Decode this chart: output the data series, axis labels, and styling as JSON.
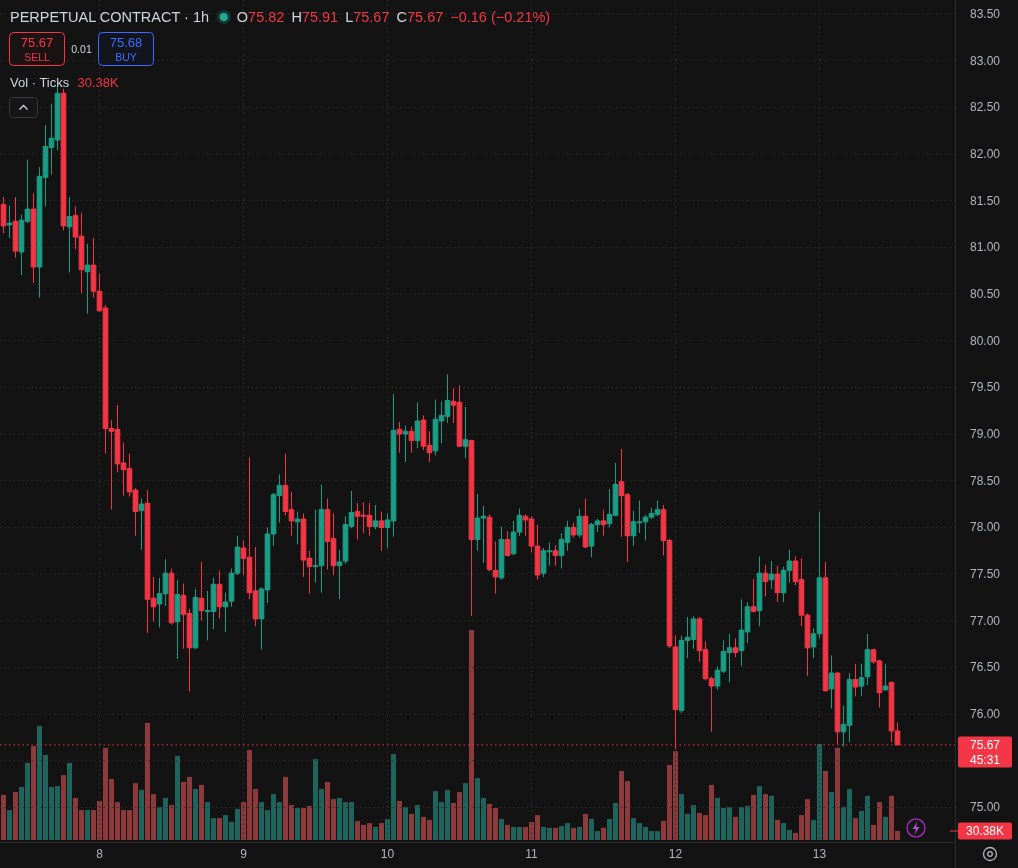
{
  "chart_data": [
    {
      "type": "candlestick",
      "title": "PERPETUAL CONTRACT · 1h",
      "annotations": [
        "O75.82",
        "H75.91",
        "L75.67",
        "C75.67",
        "−0.16 (−0.21%)",
        "75.67",
        "SELL",
        "0.01",
        "75.68",
        "BUY",
        "45:31"
      ],
      "x": [
        7.3333,
        7.375,
        7.4167,
        7.4583,
        7.5,
        7.5417,
        7.5833,
        7.625,
        7.6667,
        7.7083,
        7.75,
        7.7917,
        7.8333,
        7.875,
        7.9167,
        7.9583,
        8,
        8.0417,
        8.0833,
        8.125,
        8.1667,
        8.2083,
        8.25,
        8.2917,
        8.3333,
        8.375,
        8.4167,
        8.4583,
        8.5,
        8.5417,
        8.5833,
        8.625,
        8.6667,
        8.7083,
        8.75,
        8.7917,
        8.8333,
        8.875,
        8.9167,
        8.9583,
        9,
        9.0417,
        9.0833,
        9.125,
        9.1667,
        9.2083,
        9.25,
        9.2917,
        9.3333,
        9.375,
        9.4167,
        9.4583,
        9.5,
        9.5417,
        9.5833,
        9.625,
        9.6667,
        9.7083,
        9.75,
        9.7917,
        9.8333,
        9.875,
        9.9167,
        9.9583,
        10,
        10.0417,
        10.0833,
        10.125,
        10.1667,
        10.2083,
        10.25,
        10.2917,
        10.3333,
        10.375,
        10.4167,
        10.4583,
        10.5,
        10.5417,
        10.5833,
        10.625,
        10.6667,
        10.7083,
        10.75,
        10.7917,
        10.8333,
        10.875,
        10.9167,
        10.9583,
        11,
        11.0417,
        11.0833,
        11.125,
        11.1667,
        11.2083,
        11.25,
        11.2917,
        11.3333,
        11.375,
        11.4167,
        11.4583,
        11.5,
        11.5417,
        11.5833,
        11.625,
        11.6667,
        11.7083,
        11.75,
        11.7917,
        11.8333,
        11.875,
        11.9167,
        11.9583,
        12,
        12.0417,
        12.0833,
        12.125,
        12.1667,
        12.2083,
        12.25,
        12.2917,
        12.3333,
        12.375,
        12.4167,
        12.4583,
        12.5,
        12.5417,
        12.5833,
        12.625,
        12.6667,
        12.7083,
        12.75,
        12.7917,
        12.8333,
        12.875,
        12.9167,
        12.9583,
        13,
        13.0417,
        13.0833,
        13.125,
        13.1667,
        13.2083,
        13.25,
        13.2917,
        13.3333,
        13.375,
        13.4167,
        13.4583,
        13.5,
        13.5417
      ],
      "ohlc": [
        [
          81.46,
          81.54,
          81.15,
          81.23
        ],
        [
          81.24,
          81.45,
          81.1,
          81.26
        ],
        [
          81.28,
          81.54,
          80.89,
          80.96
        ],
        [
          80.95,
          81.35,
          80.7,
          81.29
        ],
        [
          81.28,
          81.94,
          81.26,
          81.41
        ],
        [
          81.41,
          81.58,
          80.62,
          80.79
        ],
        [
          80.79,
          81.86,
          80.46,
          81.76
        ],
        [
          81.75,
          82.31,
          81.44,
          82.08
        ],
        [
          82.07,
          82.54,
          81.78,
          82.17
        ],
        [
          82.15,
          82.72,
          82.04,
          82.65
        ],
        [
          82.65,
          82.7,
          81.18,
          81.23
        ],
        [
          81.22,
          81.54,
          80.73,
          81.33
        ],
        [
          81.34,
          81.44,
          80.98,
          81.11
        ],
        [
          81.12,
          81.37,
          80.51,
          80.76
        ],
        [
          80.74,
          81.04,
          80.29,
          80.81
        ],
        [
          80.81,
          81.1,
          80.46,
          80.53
        ],
        [
          80.53,
          80.72,
          80.31,
          80.32
        ],
        [
          80.35,
          80.38,
          78.79,
          79.06
        ],
        [
          79.06,
          79.15,
          78.19,
          79.03
        ],
        [
          79.05,
          79.31,
          78.59,
          78.68
        ],
        [
          78.69,
          78.91,
          78.34,
          78.62
        ],
        [
          78.63,
          78.79,
          78.33,
          78.38
        ],
        [
          78.4,
          78.42,
          77.91,
          78.17
        ],
        [
          78.18,
          78.31,
          77.76,
          78.25
        ],
        [
          78.26,
          78.4,
          76.87,
          77.23
        ],
        [
          77.24,
          77.47,
          76.99,
          77.15
        ],
        [
          77.18,
          77.46,
          76.93,
          77.29
        ],
        [
          77.29,
          77.66,
          77.16,
          77.51
        ],
        [
          77.51,
          77.56,
          76.96,
          76.98
        ],
        [
          76.99,
          77.44,
          76.59,
          77.28
        ],
        [
          77.27,
          77.4,
          76.7,
          77.07
        ],
        [
          77.08,
          77.13,
          76.24,
          76.71
        ],
        [
          76.71,
          77.34,
          76.7,
          77.25
        ],
        [
          77.24,
          77.63,
          77,
          77.11
        ],
        [
          77.1,
          77.32,
          76.79,
          77.11
        ],
        [
          77.1,
          77.46,
          76.91,
          77.39
        ],
        [
          77.39,
          77.54,
          77.02,
          77.15
        ],
        [
          77.15,
          77.3,
          76.88,
          77.2
        ],
        [
          77.21,
          77.56,
          77.15,
          77.51
        ],
        [
          77.51,
          77.91,
          77.49,
          77.79
        ],
        [
          77.78,
          77.86,
          77.49,
          77.67
        ],
        [
          77.68,
          78.75,
          77.23,
          77.3
        ],
        [
          77.32,
          77.79,
          76.94,
          77.02
        ],
        [
          77.02,
          77.36,
          76.69,
          77.34
        ],
        [
          77.33,
          78,
          77.19,
          77.93
        ],
        [
          77.93,
          78.37,
          77.8,
          78.35
        ],
        [
          78.34,
          78.57,
          78.05,
          78.45
        ],
        [
          78.45,
          78.79,
          78.13,
          78.17
        ],
        [
          78.19,
          78.38,
          77.91,
          78.07
        ],
        [
          78.06,
          78.17,
          77.82,
          78.09
        ],
        [
          78.09,
          78.15,
          77.47,
          77.65
        ],
        [
          77.67,
          77.75,
          77.29,
          77.58
        ],
        [
          77.58,
          78.19,
          77.41,
          77.59
        ],
        [
          77.59,
          78.46,
          77.3,
          78.19
        ],
        [
          78.19,
          78.31,
          77.55,
          77.85
        ],
        [
          77.88,
          78.15,
          77.49,
          77.59
        ],
        [
          77.59,
          77.76,
          77.23,
          77.63
        ],
        [
          77.64,
          78.12,
          77.61,
          78.03
        ],
        [
          78.01,
          78.39,
          77.99,
          78.16
        ],
        [
          78.17,
          78.26,
          77.87,
          78.12
        ],
        [
          78.13,
          78.27,
          77.94,
          78.12
        ],
        [
          78.13,
          78.26,
          77.91,
          78.01
        ],
        [
          78.01,
          78.24,
          77.98,
          78.07
        ],
        [
          78.07,
          78.17,
          77.75,
          78
        ],
        [
          78,
          78.15,
          77.78,
          78.08
        ],
        [
          78.07,
          79.43,
          77.9,
          79.04
        ],
        [
          79.05,
          79.13,
          78.8,
          79
        ],
        [
          79,
          79.09,
          78.7,
          79.03
        ],
        [
          79.03,
          79.08,
          78.8,
          78.93
        ],
        [
          78.93,
          79.34,
          78.85,
          79.14
        ],
        [
          79.15,
          79.2,
          78.83,
          78.87
        ],
        [
          78.88,
          79.03,
          78.7,
          78.8
        ],
        [
          78.82,
          79.37,
          78.77,
          79.16
        ],
        [
          79.14,
          79.35,
          78.9,
          79.2
        ],
        [
          79.19,
          79.64,
          79.12,
          79.36
        ],
        [
          79.35,
          79.49,
          79.12,
          79.31
        ],
        [
          79.34,
          79.52,
          78.86,
          78.87
        ],
        [
          78.87,
          79.29,
          78.74,
          78.94
        ],
        [
          78.93,
          78.94,
          77.05,
          77.87
        ],
        [
          77.87,
          78.36,
          77.75,
          78.1
        ],
        [
          78.1,
          78.23,
          77.62,
          78.12
        ],
        [
          78.11,
          78.14,
          77.53,
          77.55
        ],
        [
          77.54,
          77.85,
          77.29,
          77.47
        ],
        [
          77.46,
          78.01,
          77.44,
          77.87
        ],
        [
          77.87,
          77.96,
          77.69,
          77.7
        ],
        [
          77.72,
          78.07,
          77.7,
          77.95
        ],
        [
          77.95,
          78.2,
          77.91,
          78.13
        ],
        [
          78.12,
          78.14,
          77.91,
          78.08
        ],
        [
          78.09,
          78.12,
          77.73,
          77.8
        ],
        [
          77.8,
          78.03,
          77.44,
          77.49
        ],
        [
          77.51,
          77.78,
          77.47,
          77.75
        ],
        [
          77.74,
          77.84,
          77.59,
          77.75
        ],
        [
          77.75,
          77.81,
          77.59,
          77.7
        ],
        [
          77.7,
          77.94,
          77.56,
          77.87
        ],
        [
          77.84,
          78.07,
          77.75,
          78
        ],
        [
          78,
          78.05,
          77.89,
          77.92
        ],
        [
          77.92,
          78.2,
          77.89,
          78.12
        ],
        [
          78.12,
          78.31,
          77.78,
          77.79
        ],
        [
          77.8,
          78.05,
          77.68,
          78.03
        ],
        [
          78.03,
          78.09,
          77.95,
          78.07
        ],
        [
          78.07,
          78.19,
          77.91,
          78.03
        ],
        [
          78.04,
          78.41,
          78,
          78.14
        ],
        [
          78.13,
          78.69,
          78.12,
          78.46
        ],
        [
          78.49,
          78.84,
          77.9,
          78.34
        ],
        [
          78.35,
          78.37,
          77.63,
          77.91
        ],
        [
          77.91,
          78.18,
          77.8,
          78.06
        ],
        [
          78.05,
          78.29,
          77.94,
          78.06
        ],
        [
          78.06,
          78.13,
          77.86,
          78.11
        ],
        [
          78.11,
          78.21,
          78.09,
          78.15
        ],
        [
          78.14,
          78.29,
          78.12,
          78.19
        ],
        [
          78.19,
          78.24,
          77.7,
          77.86
        ],
        [
          77.86,
          77.88,
          76.71,
          76.73
        ],
        [
          76.72,
          76.84,
          75.62,
          76.05
        ],
        [
          76.04,
          76.84,
          76.01,
          76.79
        ],
        [
          76.79,
          77.04,
          76.6,
          76.82
        ],
        [
          76.8,
          77.05,
          76.7,
          77.02
        ],
        [
          77.02,
          77.04,
          76.56,
          76.68
        ],
        [
          76.69,
          76.78,
          76.36,
          76.38
        ],
        [
          76.38,
          76.4,
          75.81,
          76.3
        ],
        [
          76.3,
          76.51,
          76.26,
          76.47
        ],
        [
          76.46,
          76.79,
          76.44,
          76.67
        ],
        [
          76.66,
          76.86,
          76.34,
          76.71
        ],
        [
          76.71,
          76.81,
          76.61,
          76.66
        ],
        [
          76.68,
          77.23,
          76.51,
          76.9
        ],
        [
          76.88,
          77.2,
          76.76,
          77.15
        ],
        [
          77.15,
          77.45,
          77.09,
          77.1
        ],
        [
          77.11,
          77.69,
          76.94,
          77.51
        ],
        [
          77.51,
          77.6,
          77.26,
          77.42
        ],
        [
          77.44,
          77.64,
          77.34,
          77.5
        ],
        [
          77.5,
          77.59,
          77.2,
          77.3
        ],
        [
          77.3,
          77.58,
          77.2,
          77.54
        ],
        [
          77.54,
          77.76,
          77.41,
          77.64
        ],
        [
          77.64,
          77.69,
          77.38,
          77.42
        ],
        [
          77.44,
          77.67,
          76.94,
          77.06
        ],
        [
          77.06,
          77.08,
          76.41,
          76.71
        ],
        [
          76.72,
          76.92,
          76.6,
          76.86
        ],
        [
          76.86,
          78.17,
          76.81,
          77.46
        ],
        [
          77.46,
          77.63,
          76.24,
          76.25
        ],
        [
          76.27,
          76.63,
          76.06,
          76.44
        ],
        [
          76.44,
          76.45,
          75.68,
          75.81
        ],
        [
          75.81,
          76.09,
          75.65,
          75.89
        ],
        [
          75.88,
          76.44,
          75.7,
          76.37
        ],
        [
          76.37,
          76.54,
          76.19,
          76.29
        ],
        [
          76.3,
          76.54,
          76.19,
          76.39
        ],
        [
          76.4,
          76.86,
          76.31,
          76.69
        ],
        [
          76.69,
          76.7,
          76.54,
          76.56
        ],
        [
          76.57,
          76.58,
          76.07,
          76.23
        ],
        [
          76.26,
          76.54,
          76.25,
          76.3
        ],
        [
          76.34,
          76.35,
          75.7,
          75.82
        ],
        [
          75.82,
          75.91,
          75.67,
          75.67
        ]
      ],
      "colors": [
        "#f23645",
        "#1a9d84",
        "#f23645",
        "#1a9d84",
        "#1a9d84",
        "#f23645",
        "#1a9d84",
        "#1a9d84",
        "#1a9d84",
        "#1a9d84",
        "#f23645",
        "#1a9d84",
        "#f23645",
        "#f23645",
        "#1a9d84",
        "#f23645",
        "#f23645",
        "#f23645",
        "#f23645",
        "#f23645",
        "#f23645",
        "#f23645",
        "#f23645",
        "#1a9d84",
        "#f23645",
        "#f23645",
        "#1a9d84",
        "#1a9d84",
        "#f23645",
        "#1a9d84",
        "#f23645",
        "#f23645",
        "#1a9d84",
        "#f23645",
        "#1a9d84",
        "#1a9d84",
        "#f23645",
        "#1a9d84",
        "#1a9d84",
        "#1a9d84",
        "#f23645",
        "#f23645",
        "#f23645",
        "#1a9d84",
        "#1a9d84",
        "#1a9d84",
        "#1a9d84",
        "#f23645",
        "#f23645",
        "#1a9d84",
        "#f23645",
        "#f23645",
        "#1a9d84",
        "#1a9d84",
        "#f23645",
        "#f23645",
        "#1a9d84",
        "#1a9d84",
        "#1a9d84",
        "#f23645",
        "#f23645",
        "#f23645",
        "#1a9d84",
        "#f23645",
        "#1a9d84",
        "#1a9d84",
        "#f23645",
        "#1a9d84",
        "#f23645",
        "#1a9d84",
        "#f23645",
        "#f23645",
        "#1a9d84",
        "#1a9d84",
        "#1a9d84",
        "#f23645",
        "#f23645",
        "#1a9d84",
        "#f23645",
        "#1a9d84",
        "#1a9d84",
        "#f23645",
        "#f23645",
        "#1a9d84",
        "#f23645",
        "#1a9d84",
        "#1a9d84",
        "#f23645",
        "#f23645",
        "#f23645",
        "#1a9d84",
        "#1a9d84",
        "#f23645",
        "#1a9d84",
        "#1a9d84",
        "#f23645",
        "#1a9d84",
        "#f23645",
        "#1a9d84",
        "#1a9d84",
        "#f23645",
        "#1a9d84",
        "#1a9d84",
        "#f23645",
        "#f23645",
        "#1a9d84",
        "#1a9d84",
        "#1a9d84",
        "#1a9d84",
        "#1a9d84",
        "#f23645",
        "#f23645",
        "#f23645",
        "#1a9d84",
        "#1a9d84",
        "#1a9d84",
        "#f23645",
        "#f23645",
        "#f23645",
        "#1a9d84",
        "#1a9d84",
        "#1a9d84",
        "#f23645",
        "#1a9d84",
        "#1a9d84",
        "#f23645",
        "#1a9d84",
        "#f23645",
        "#1a9d84",
        "#f23645",
        "#1a9d84",
        "#1a9d84",
        "#f23645",
        "#f23645",
        "#f23645",
        "#1a9d84",
        "#1a9d84",
        "#f23645",
        "#1a9d84",
        "#f23645",
        "#1a9d84",
        "#1a9d84",
        "#f23645",
        "#1a9d84",
        "#1a9d84",
        "#f23645",
        "#f23645",
        "#1a9d84",
        "#f23645",
        "#f23645"
      ],
      "xlim": [
        7.309,
        13.941
      ],
      "xticks": [
        8,
        9,
        10,
        11,
        12,
        13
      ],
      "ylim": [
        74.63,
        83.65
      ],
      "yticks": [
        {
          "value": 75,
          "label": "75.00"
        },
        {
          "value": 75.5,
          "label": null
        },
        {
          "value": 76,
          "label": "76.00"
        },
        {
          "value": 76.5,
          "label": "76.50"
        },
        {
          "value": 77,
          "label": "77.00"
        },
        {
          "value": 77.5,
          "label": "77.50"
        },
        {
          "value": 78,
          "label": "78.00"
        },
        {
          "value": 78.5,
          "label": "78.50"
        },
        {
          "value": 79,
          "label": "79.00"
        },
        {
          "value": 79.5,
          "label": "79.50"
        },
        {
          "value": 80,
          "label": "80.00"
        },
        {
          "value": 80.5,
          "label": "80.50"
        },
        {
          "value": 81,
          "label": "81.00"
        },
        {
          "value": 81.5,
          "label": "81.50"
        },
        {
          "value": 82,
          "label": "82.00"
        },
        {
          "value": 82.5,
          "label": "82.50"
        },
        {
          "value": 83,
          "label": "83.00"
        },
        {
          "value": 83.5,
          "label": "83.50"
        }
      ],
      "grid": true,
      "ref_lines": [
        {
          "axis": "y",
          "value": 75.67,
          "label": "75.67",
          "color": "#f23645",
          "line_style": "dotted"
        }
      ]
    },
    {
      "type": "bar",
      "title": "Vol · Ticks",
      "subtitle": "30.38K",
      "tick_labels": "y",
      "x": [
        7.3333,
        7.375,
        7.4167,
        7.4583,
        7.5,
        7.5417,
        7.5833,
        7.625,
        7.6667,
        7.7083,
        7.75,
        7.7917,
        7.8333,
        7.875,
        7.9167,
        7.9583,
        8,
        8.0417,
        8.0833,
        8.125,
        8.1667,
        8.2083,
        8.25,
        8.2917,
        8.3333,
        8.375,
        8.4167,
        8.4583,
        8.5,
        8.5417,
        8.5833,
        8.625,
        8.6667,
        8.7083,
        8.75,
        8.7917,
        8.8333,
        8.875,
        8.9167,
        8.9583,
        9,
        9.0417,
        9.0833,
        9.125,
        9.1667,
        9.2083,
        9.25,
        9.2917,
        9.3333,
        9.375,
        9.4167,
        9.4583,
        9.5,
        9.5417,
        9.5833,
        9.625,
        9.6667,
        9.7083,
        9.75,
        9.7917,
        9.8333,
        9.875,
        9.9167,
        9.9583,
        10,
        10.0417,
        10.0833,
        10.125,
        10.1667,
        10.2083,
        10.25,
        10.2917,
        10.3333,
        10.375,
        10.4167,
        10.4583,
        10.5,
        10.5417,
        10.5833,
        10.625,
        10.6667,
        10.7083,
        10.75,
        10.7917,
        10.8333,
        10.875,
        10.9167,
        10.9583,
        11,
        11.0417,
        11.0833,
        11.125,
        11.1667,
        11.2083,
        11.25,
        11.2917,
        11.3333,
        11.375,
        11.4167,
        11.4583,
        11.5,
        11.5417,
        11.5833,
        11.625,
        11.6667,
        11.7083,
        11.75,
        11.7917,
        11.8333,
        11.875,
        11.9167,
        11.9583,
        12,
        12.0417,
        12.0833,
        12.125,
        12.1667,
        12.2083,
        12.25,
        12.2917,
        12.3333,
        12.375,
        12.4167,
        12.4583,
        12.5,
        12.5417,
        12.5833,
        12.625,
        12.6667,
        12.7083,
        12.75,
        12.7917,
        12.8333,
        12.875,
        12.9167,
        12.9583,
        13,
        13.0417,
        13.0833,
        13.125,
        13.1667,
        13.2083,
        13.25,
        13.2917,
        13.3333,
        13.375,
        13.4167,
        13.4583,
        13.5,
        13.5417
      ],
      "xlim": [
        7.309,
        13.941
      ],
      "ylim": [
        0,
        709
      ],
      "yticks": [
        {
          "value": 30.38,
          "label": "30.38K"
        }
      ],
      "values": [
        152,
        101,
        162,
        179,
        260,
        317,
        385,
        287,
        179,
        182,
        219,
        260,
        142,
        101,
        101,
        101,
        132,
        311,
        206,
        128,
        101,
        101,
        192,
        169,
        395,
        155,
        111,
        142,
        118,
        284,
        196,
        213,
        172,
        186,
        128,
        74,
        74,
        84,
        61,
        105,
        128,
        304,
        172,
        128,
        101,
        155,
        128,
        213,
        118,
        108,
        108,
        115,
        273,
        172,
        196,
        138,
        142,
        128,
        128,
        64,
        51,
        57,
        44,
        57,
        71,
        290,
        132,
        111,
        88,
        118,
        78,
        68,
        165,
        128,
        169,
        125,
        162,
        192,
        709,
        209,
        142,
        122,
        108,
        71,
        51,
        44,
        44,
        44,
        61,
        84,
        44,
        41,
        41,
        47,
        57,
        41,
        44,
        88,
        71,
        30,
        41,
        71,
        125,
        233,
        199,
        74,
        57,
        44,
        30,
        30,
        64,
        253,
        300,
        155,
        88,
        118,
        91,
        84,
        186,
        142,
        108,
        111,
        78,
        111,
        115,
        152,
        182,
        155,
        149,
        68,
        57,
        34,
        24,
        84,
        138,
        68,
        324,
        233,
        162,
        311,
        111,
        172,
        74,
        98,
        149,
        51,
        128,
        78,
        149,
        30.38
      ],
      "colors": [
        "#8c3a3c",
        "#1f645c",
        "#8c3a3c",
        "#1f645c",
        "#1f645c",
        "#8c3a3c",
        "#1f645c",
        "#1f645c",
        "#1f645c",
        "#1f645c",
        "#8c3a3c",
        "#1f645c",
        "#8c3a3c",
        "#8c3a3c",
        "#1f645c",
        "#8c3a3c",
        "#8c3a3c",
        "#8c3a3c",
        "#8c3a3c",
        "#8c3a3c",
        "#8c3a3c",
        "#8c3a3c",
        "#8c3a3c",
        "#1f645c",
        "#8c3a3c",
        "#8c3a3c",
        "#1f645c",
        "#1f645c",
        "#8c3a3c",
        "#1f645c",
        "#8c3a3c",
        "#8c3a3c",
        "#1f645c",
        "#8c3a3c",
        "#1f645c",
        "#1f645c",
        "#8c3a3c",
        "#1f645c",
        "#1f645c",
        "#1f645c",
        "#8c3a3c",
        "#8c3a3c",
        "#8c3a3c",
        "#1f645c",
        "#1f645c",
        "#1f645c",
        "#1f645c",
        "#8c3a3c",
        "#8c3a3c",
        "#1f645c",
        "#8c3a3c",
        "#8c3a3c",
        "#1f645c",
        "#1f645c",
        "#8c3a3c",
        "#8c3a3c",
        "#1f645c",
        "#1f645c",
        "#1f645c",
        "#8c3a3c",
        "#8c3a3c",
        "#8c3a3c",
        "#1f645c",
        "#8c3a3c",
        "#1f645c",
        "#1f645c",
        "#8c3a3c",
        "#1f645c",
        "#8c3a3c",
        "#1f645c",
        "#8c3a3c",
        "#8c3a3c",
        "#1f645c",
        "#1f645c",
        "#1f645c",
        "#8c3a3c",
        "#8c3a3c",
        "#1f645c",
        "#8c3a3c",
        "#1f645c",
        "#1f645c",
        "#8c3a3c",
        "#8c3a3c",
        "#1f645c",
        "#8c3a3c",
        "#1f645c",
        "#1f645c",
        "#8c3a3c",
        "#8c3a3c",
        "#8c3a3c",
        "#1f645c",
        "#1f645c",
        "#8c3a3c",
        "#1f645c",
        "#1f645c",
        "#8c3a3c",
        "#1f645c",
        "#8c3a3c",
        "#1f645c",
        "#1f645c",
        "#8c3a3c",
        "#1f645c",
        "#1f645c",
        "#8c3a3c",
        "#8c3a3c",
        "#1f645c",
        "#1f645c",
        "#1f645c",
        "#1f645c",
        "#1f645c",
        "#8c3a3c",
        "#8c3a3c",
        "#8c3a3c",
        "#1f645c",
        "#1f645c",
        "#1f645c",
        "#8c3a3c",
        "#8c3a3c",
        "#8c3a3c",
        "#1f645c",
        "#1f645c",
        "#1f645c",
        "#8c3a3c",
        "#1f645c",
        "#1f645c",
        "#8c3a3c",
        "#1f645c",
        "#8c3a3c",
        "#1f645c",
        "#8c3a3c",
        "#1f645c",
        "#1f645c",
        "#8c3a3c",
        "#8c3a3c",
        "#8c3a3c",
        "#1f645c",
        "#1f645c",
        "#8c3a3c",
        "#1f645c",
        "#8c3a3c",
        "#1f645c",
        "#1f645c",
        "#8c3a3c",
        "#1f645c",
        "#1f645c",
        "#8c3a3c",
        "#8c3a3c",
        "#1f645c",
        "#8c3a3c",
        "#8c3a3c"
      ]
    }
  ]
}
